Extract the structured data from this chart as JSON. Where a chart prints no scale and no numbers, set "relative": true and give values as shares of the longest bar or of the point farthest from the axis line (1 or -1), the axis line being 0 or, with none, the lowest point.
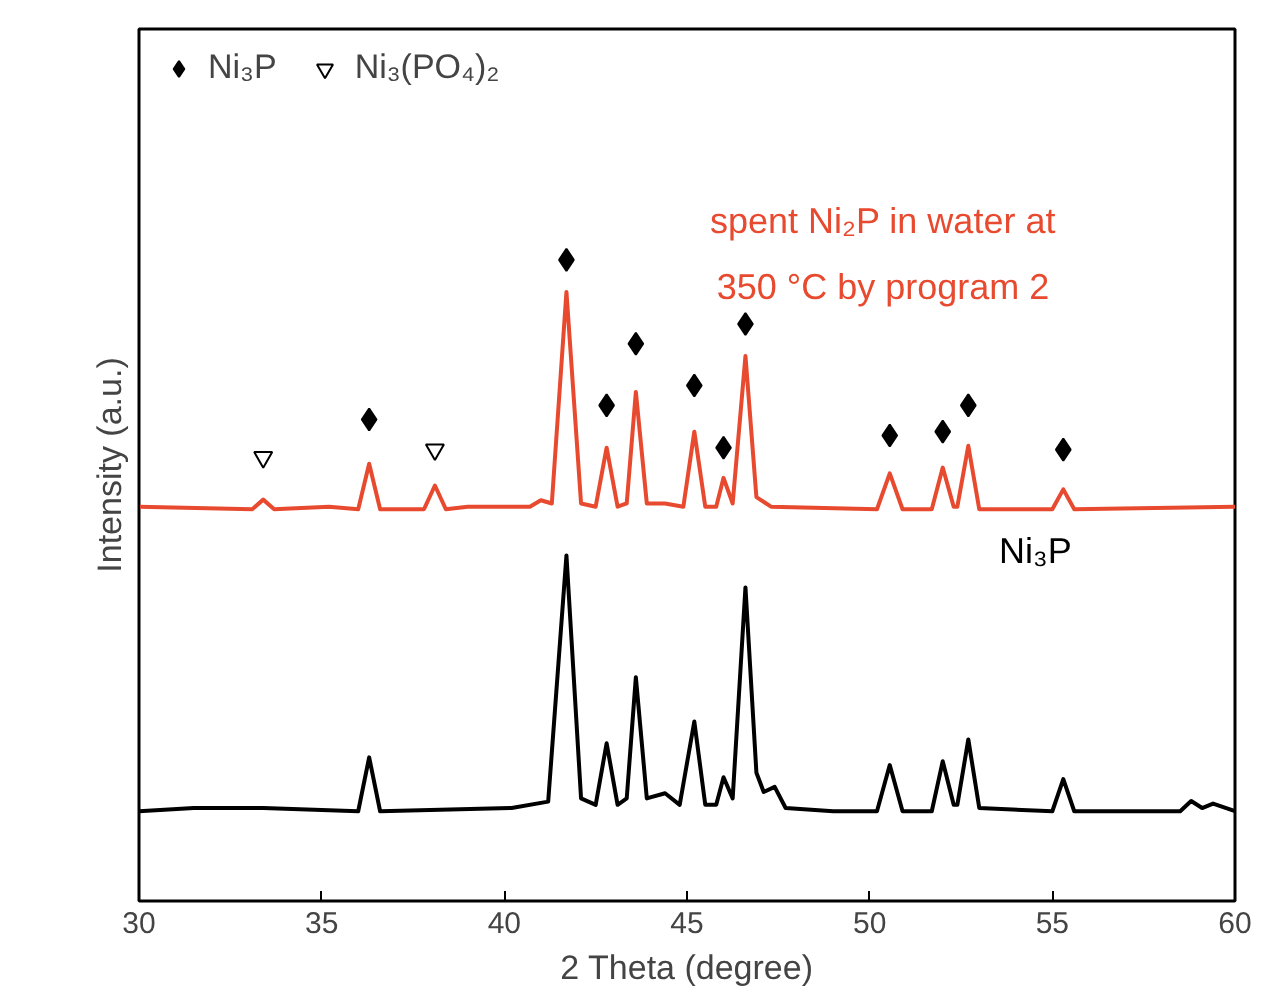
{
  "chart_data": {
    "type": "line",
    "xlabel": "2 Theta (degree)",
    "ylabel": "Intensity (a.u.)",
    "relative": true,
    "xlim": [
      30,
      60
    ],
    "xticks": [
      30,
      35,
      40,
      45,
      50,
      55,
      60
    ],
    "grid": false,
    "legend": "top left",
    "annotations": [
      "Ni₃P"
    ],
    "series": [
      {
        "name": "spent Ni₂P in water at 350 °C by program 2",
        "color": "#e84a2f",
        "x": [
          30,
          33.1,
          33.4,
          33.7,
          35.2,
          36.0,
          36.3,
          36.6,
          37.8,
          38.1,
          38.4,
          39.0,
          40.7,
          41.0,
          41.3,
          41.7,
          42.1,
          42.5,
          42.8,
          43.1,
          43.35,
          43.6,
          43.9,
          44.4,
          44.9,
          45.2,
          45.5,
          45.8,
          46.0,
          46.25,
          46.6,
          46.9,
          47.3,
          50.2,
          50.55,
          50.9,
          51.7,
          52.0,
          52.3,
          52.4,
          52.7,
          53.0,
          55.0,
          55.3,
          55.6,
          60
        ],
        "values": [
          0.615,
          0.611,
          0.626,
          0.611,
          0.615,
          0.611,
          0.682,
          0.611,
          0.611,
          0.648,
          0.611,
          0.615,
          0.615,
          0.625,
          0.62,
          0.95,
          0.62,
          0.615,
          0.707,
          0.615,
          0.62,
          0.794,
          0.62,
          0.62,
          0.615,
          0.732,
          0.615,
          0.615,
          0.66,
          0.62,
          0.85,
          0.63,
          0.615,
          0.611,
          0.667,
          0.611,
          0.611,
          0.676,
          0.615,
          0.615,
          0.71,
          0.611,
          0.611,
          0.642,
          0.611,
          0.615
        ]
      },
      {
        "color": "#000000",
        "x": [
          30,
          31.5,
          33.4,
          36.0,
          36.3,
          36.6,
          40.2,
          41.2,
          41.7,
          42.1,
          42.5,
          42.8,
          43.1,
          43.35,
          43.6,
          43.9,
          44.4,
          44.8,
          45.2,
          45.5,
          45.8,
          46.0,
          46.25,
          46.6,
          46.9,
          47.1,
          47.4,
          47.7,
          49,
          50.2,
          50.55,
          50.9,
          51.7,
          52.0,
          52.3,
          52.4,
          52.7,
          53.0,
          55.0,
          55.3,
          55.6,
          58.5,
          58.8,
          59.1,
          59.4,
          60
        ],
        "values": [
          0.14,
          0.145,
          0.145,
          0.14,
          0.224,
          0.14,
          0.145,
          0.155,
          0.539,
          0.16,
          0.15,
          0.246,
          0.15,
          0.16,
          0.349,
          0.16,
          0.168,
          0.15,
          0.28,
          0.15,
          0.15,
          0.193,
          0.16,
          0.489,
          0.2,
          0.17,
          0.178,
          0.145,
          0.14,
          0.14,
          0.212,
          0.14,
          0.14,
          0.218,
          0.15,
          0.15,
          0.252,
          0.145,
          0.14,
          0.19,
          0.14,
          0.14,
          0.156,
          0.145,
          0.152,
          0.14
        ]
      },
      {
        "name": "Ni₃P",
        "type": "scatter",
        "marker": "diamond",
        "color": "#000000",
        "x": [
          36.3,
          41.7,
          42.8,
          43.6,
          45.2,
          46.0,
          46.6,
          50.55,
          52.0,
          52.7,
          55.3
        ],
        "values": [
          0.751,
          1.0,
          0.773,
          0.869,
          0.804,
          0.707,
          0.9,
          0.726,
          0.732,
          0.773,
          0.704
        ]
      },
      {
        "name": "Ni₃(PO₄)₂",
        "type": "scatter",
        "marker": "triangle",
        "color": "#000000",
        "x": [
          33.4,
          38.1
        ],
        "values": [
          0.692,
          0.704
        ]
      }
    ]
  }
}
